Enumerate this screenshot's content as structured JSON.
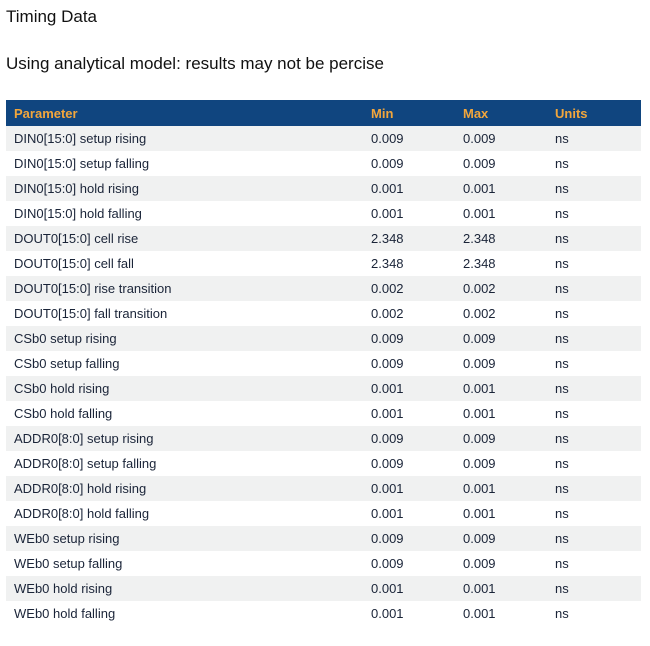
{
  "page": {
    "title": "Timing Data",
    "subtitle": "Using analytical model: results may not be percise"
  },
  "table": {
    "columns": [
      "Parameter",
      "Min",
      "Max",
      "Units"
    ],
    "rows": [
      {
        "parameter": "DIN0[15:0] setup rising",
        "min": "0.009",
        "max": "0.009",
        "units": "ns"
      },
      {
        "parameter": "DIN0[15:0] setup falling",
        "min": "0.009",
        "max": "0.009",
        "units": "ns"
      },
      {
        "parameter": "DIN0[15:0] hold rising",
        "min": "0.001",
        "max": "0.001",
        "units": "ns"
      },
      {
        "parameter": "DIN0[15:0] hold falling",
        "min": "0.001",
        "max": "0.001",
        "units": "ns"
      },
      {
        "parameter": "DOUT0[15:0] cell rise",
        "min": "2.348",
        "max": "2.348",
        "units": "ns"
      },
      {
        "parameter": "DOUT0[15:0] cell fall",
        "min": "2.348",
        "max": "2.348",
        "units": "ns"
      },
      {
        "parameter": "DOUT0[15:0] rise transition",
        "min": "0.002",
        "max": "0.002",
        "units": "ns"
      },
      {
        "parameter": "DOUT0[15:0] fall transition",
        "min": "0.002",
        "max": "0.002",
        "units": "ns"
      },
      {
        "parameter": "CSb0 setup rising",
        "min": "0.009",
        "max": "0.009",
        "units": "ns"
      },
      {
        "parameter": "CSb0 setup falling",
        "min": "0.009",
        "max": "0.009",
        "units": "ns"
      },
      {
        "parameter": "CSb0 hold rising",
        "min": "0.001",
        "max": "0.001",
        "units": "ns"
      },
      {
        "parameter": "CSb0 hold falling",
        "min": "0.001",
        "max": "0.001",
        "units": "ns"
      },
      {
        "parameter": "ADDR0[8:0] setup rising",
        "min": "0.009",
        "max": "0.009",
        "units": "ns"
      },
      {
        "parameter": "ADDR0[8:0] setup falling",
        "min": "0.009",
        "max": "0.009",
        "units": "ns"
      },
      {
        "parameter": "ADDR0[8:0] hold rising",
        "min": "0.001",
        "max": "0.001",
        "units": "ns"
      },
      {
        "parameter": "ADDR0[8:0] hold falling",
        "min": "0.001",
        "max": "0.001",
        "units": "ns"
      },
      {
        "parameter": "WEb0 setup rising",
        "min": "0.009",
        "max": "0.009",
        "units": "ns"
      },
      {
        "parameter": "WEb0 setup falling",
        "min": "0.009",
        "max": "0.009",
        "units": "ns"
      },
      {
        "parameter": "WEb0 hold rising",
        "min": "0.001",
        "max": "0.001",
        "units": "ns"
      },
      {
        "parameter": "WEb0 hold falling",
        "min": "0.001",
        "max": "0.001",
        "units": "ns"
      }
    ]
  },
  "colors": {
    "header_bg": "#10457f",
    "header_text": "#f2a63c",
    "row_text": "#1a2438",
    "alt_row_bg": "#f0f1f1",
    "title_text": "#111111"
  }
}
